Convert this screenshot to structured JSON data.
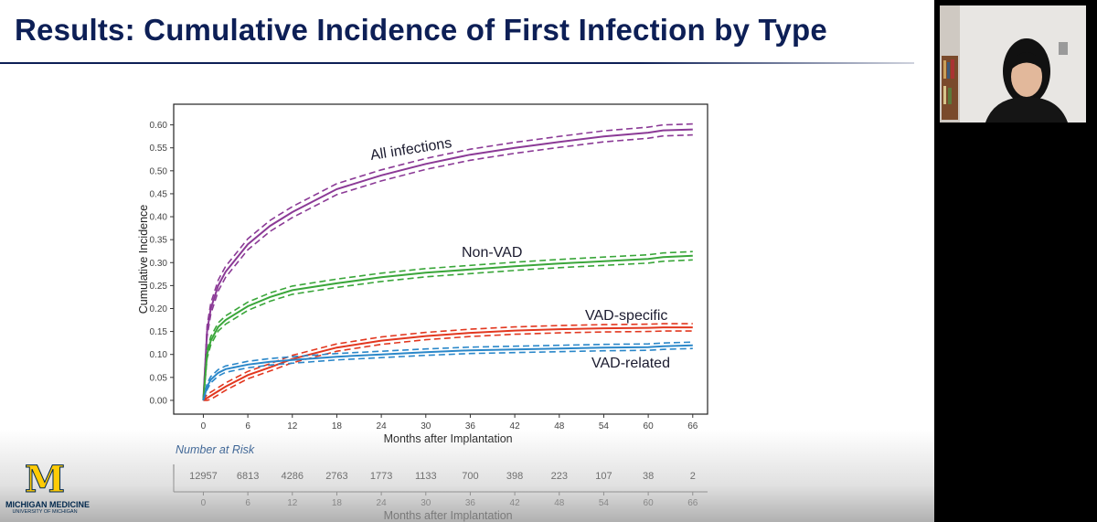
{
  "slide": {
    "title": "Results: Cumulative Incidence of First Infection by Type"
  },
  "logo": {
    "name": "MICHIGAN MEDICINE",
    "sub": "UNIVERSITY OF MICHIGAN",
    "mark": "M"
  },
  "colors": {
    "title": "#0d1f56",
    "all_infections": "#8b3a96",
    "non_vad": "#3aa63a",
    "vad_specific": "#e2371f",
    "vad_related": "#2a87c9"
  },
  "chart_data": {
    "type": "line",
    "title": "",
    "xlabel": "Months after Implantation",
    "ylabel": "Cumulative Incidence",
    "xlim": [
      -4,
      68
    ],
    "ylim": [
      -0.03,
      0.645
    ],
    "x_ticks": [
      0,
      6,
      12,
      18,
      24,
      30,
      36,
      42,
      48,
      54,
      60,
      66
    ],
    "y_ticks": [
      0.0,
      0.05,
      0.1,
      0.15,
      0.2,
      0.25,
      0.3,
      0.35,
      0.4,
      0.45,
      0.5,
      0.55,
      0.6
    ],
    "y_tick_labels": [
      "0.00",
      "0.05",
      "0.10",
      "0.15",
      "0.20",
      "0.25",
      "0.30",
      "0.35",
      "0.40",
      "0.45",
      "0.50",
      "0.55",
      "0.60"
    ],
    "x": [
      0,
      0.5,
      1,
      2,
      3,
      6,
      9,
      12,
      18,
      24,
      30,
      36,
      42,
      48,
      54,
      60,
      62,
      66
    ],
    "series": [
      {
        "name": "All infections",
        "color": "#8b3a96",
        "ci_halfwidth": 0.012,
        "values": [
          0.0,
          0.15,
          0.2,
          0.25,
          0.28,
          0.34,
          0.38,
          0.41,
          0.46,
          0.49,
          0.515,
          0.535,
          0.55,
          0.563,
          0.575,
          0.583,
          0.588,
          0.59
        ]
      },
      {
        "name": "Non-VAD",
        "color": "#3aa63a",
        "ci_halfwidth": 0.009,
        "values": [
          0.0,
          0.1,
          0.13,
          0.16,
          0.175,
          0.205,
          0.225,
          0.24,
          0.255,
          0.268,
          0.278,
          0.285,
          0.292,
          0.298,
          0.303,
          0.308,
          0.312,
          0.315
        ]
      },
      {
        "name": "VAD-specific",
        "color": "#e2371f",
        "ci_halfwidth": 0.008,
        "values": [
          0.0,
          0.005,
          0.01,
          0.02,
          0.03,
          0.055,
          0.072,
          0.09,
          0.115,
          0.13,
          0.14,
          0.147,
          0.152,
          0.155,
          0.157,
          0.158,
          0.159,
          0.159
        ]
      },
      {
        "name": "VAD-related",
        "color": "#2a87c9",
        "ci_halfwidth": 0.007,
        "values": [
          0.0,
          0.03,
          0.045,
          0.06,
          0.068,
          0.078,
          0.084,
          0.088,
          0.095,
          0.1,
          0.105,
          0.109,
          0.111,
          0.113,
          0.115,
          0.116,
          0.118,
          0.12
        ]
      }
    ],
    "annotations": [
      "All infections",
      "Non-VAD",
      "VAD-specific",
      "VAD-related"
    ],
    "risk_table": {
      "title": "Number at Risk",
      "months": [
        0,
        6,
        12,
        18,
        24,
        30,
        36,
        42,
        48,
        54,
        60,
        66
      ],
      "counts": [
        12957,
        6813,
        4286,
        2763,
        1773,
        1133,
        700,
        398,
        223,
        107,
        38,
        2
      ],
      "xlabel": "Months after Implantation"
    }
  }
}
